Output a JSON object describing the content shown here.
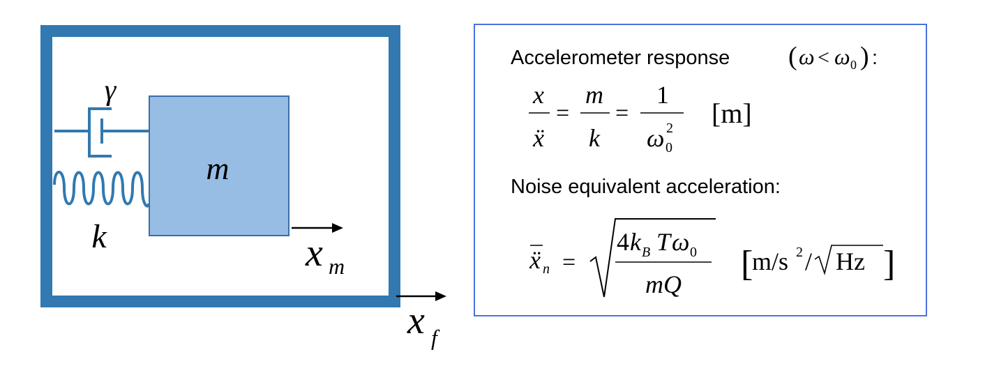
{
  "diagram": {
    "mass_label": "m",
    "spring_label": "k",
    "damper_label": "γ",
    "mass_position_label": {
      "base": "x",
      "sub": "m"
    },
    "frame_position_label": {
      "base": "x",
      "sub": "f"
    }
  },
  "equations_panel": {
    "response_heading": "Accelerometer response",
    "response_condition": {
      "open": "(",
      "omega": "ω",
      "less_than": "<",
      "omega0": "ω",
      "omega0_sub": "0",
      "close": ")",
      "colon": ":"
    },
    "response_equation": {
      "frac1_num": "x",
      "frac1_den": "ẍ",
      "eq1": "=",
      "frac2_num": "m",
      "frac2_den": "k",
      "eq2": "=",
      "frac3_num": "1",
      "frac3_den": "ω",
      "frac3_den_sub": "0",
      "frac3_den_sup": "2",
      "unit": "[m]"
    },
    "noise_heading": "Noise equivalent acceleration:",
    "noise_equation": {
      "lhs": "ẍ",
      "lhs_sub": "n",
      "eq": "=",
      "num_4": "4",
      "num_k": "k",
      "num_k_sub": "B",
      "num_T": "T",
      "num_omega": "ω",
      "num_omega_sub": "0",
      "den": "mQ",
      "unit_open": "[",
      "unit_m_s": "m/s",
      "unit_sup": "2",
      "unit_slash": "/",
      "unit_hz": "Hz",
      "unit_close": "]"
    }
  },
  "colors": {
    "frame": "#3179b0",
    "mass_fill": "#97bde5",
    "mass_stroke": "#3a6ea8",
    "panel_border": "#4a72df"
  }
}
